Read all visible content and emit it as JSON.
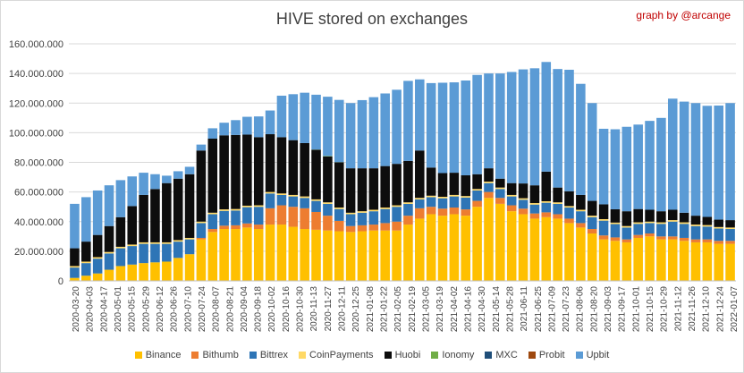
{
  "chart_data": {
    "type": "bar",
    "stacked": true,
    "title": "HIVE stored on exchanges",
    "credit": "graph by @arcange",
    "ylim": [
      0,
      160000000
    ],
    "yticks": [
      "0",
      "20.000.000",
      "40.000.000",
      "60.000.000",
      "80.000.000",
      "100.000.000",
      "120.000.000",
      "140.000.000",
      "160.000.000"
    ],
    "ytick_values": [
      0,
      20000000,
      40000000,
      60000000,
      80000000,
      100000000,
      120000000,
      140000000,
      160000000
    ],
    "xticks": [
      "2020-03-20",
      "2020-04-03",
      "2020-04-17",
      "2020-05-01",
      "2020-05-15",
      "2020-05-29",
      "2020-06-12",
      "2020-06-26",
      "2020-07-10",
      "2020-07-24",
      "2020-08-07",
      "2020-08-21",
      "2020-09-04",
      "2020-09-18",
      "2020-10-02",
      "2020-10-16",
      "2020-10-30",
      "2020-11-13",
      "2020-11-27",
      "2020-12-11",
      "2020-12-25",
      "2021-01-08",
      "2021-01-22",
      "2021-02-05",
      "2021-02-19",
      "2021-03-05",
      "2021-03-19",
      "2021-04-02",
      "2021-04-16",
      "2021-04-30",
      "2021-05-14",
      "2021-05-28",
      "2021-06-11",
      "2021-06-25",
      "2021-07-09",
      "2021-07-23",
      "2021-08-06",
      "2021-08-20",
      "2021-09-03",
      "2021-09-17",
      "2021-10-01",
      "2021-10-15",
      "2021-10-29",
      "2021-11-12",
      "2021-11-26",
      "2021-12-10",
      "2021-12-24",
      "2022-01-07"
    ],
    "grid": true,
    "legend_position": "bottom",
    "series": [
      {
        "name": "Binance",
        "color": "#ffc000",
        "keyframes": [
          [
            0,
            2000000
          ],
          [
            2,
            5000000
          ],
          [
            4,
            10000000
          ],
          [
            6,
            12000000
          ],
          [
            8,
            13000000
          ],
          [
            10,
            18000000
          ],
          [
            11,
            28000000
          ],
          [
            12,
            33000000
          ],
          [
            13,
            35000000
          ],
          [
            14,
            35000000
          ],
          [
            15,
            36000000
          ],
          [
            16,
            35000000
          ],
          [
            17,
            38000000
          ],
          [
            18,
            38000000
          ],
          [
            20,
            35000000
          ],
          [
            22,
            34000000
          ],
          [
            24,
            33000000
          ],
          [
            26,
            34000000
          ],
          [
            28,
            34000000
          ],
          [
            29,
            38000000
          ],
          [
            30,
            42000000
          ],
          [
            31,
            45000000
          ],
          [
            32,
            44000000
          ],
          [
            33,
            45000000
          ],
          [
            34,
            44000000
          ],
          [
            35,
            50000000
          ],
          [
            36,
            56000000
          ],
          [
            37,
            52000000
          ],
          [
            38,
            47000000
          ],
          [
            39,
            45000000
          ],
          [
            40,
            42000000
          ],
          [
            41,
            43000000
          ],
          [
            42,
            42000000
          ],
          [
            43,
            39000000
          ],
          [
            44,
            36000000
          ],
          [
            45,
            32000000
          ],
          [
            46,
            28000000
          ],
          [
            47,
            27000000
          ],
          [
            48,
            26000000
          ],
          [
            49,
            29000000
          ],
          [
            50,
            30000000
          ],
          [
            51,
            28000000
          ],
          [
            52,
            28000000
          ],
          [
            53,
            27000000
          ],
          [
            54,
            26000000
          ],
          [
            55,
            26000000
          ],
          [
            56,
            25000000
          ],
          [
            57,
            25000000
          ]
        ]
      },
      {
        "name": "Bithumb",
        "color": "#ed7d31",
        "keyframes": [
          [
            0,
            0
          ],
          [
            10,
            0
          ],
          [
            12,
            2000000
          ],
          [
            16,
            3000000
          ],
          [
            17,
            11000000
          ],
          [
            18,
            13000000
          ],
          [
            20,
            14000000
          ],
          [
            22,
            10000000
          ],
          [
            24,
            4000000
          ],
          [
            26,
            4000000
          ],
          [
            28,
            6000000
          ],
          [
            29,
            6000000
          ],
          [
            30,
            7000000
          ],
          [
            31,
            5000000
          ],
          [
            35,
            4000000
          ],
          [
            38,
            4000000
          ],
          [
            42,
            3000000
          ],
          [
            45,
            3000000
          ],
          [
            48,
            2000000
          ],
          [
            52,
            2000000
          ],
          [
            57,
            2000000
          ]
        ]
      },
      {
        "name": "Bittrex",
        "color": "#2e75b6",
        "keyframes": [
          [
            0,
            7000000
          ],
          [
            2,
            10000000
          ],
          [
            4,
            12000000
          ],
          [
            6,
            13000000
          ],
          [
            8,
            12000000
          ],
          [
            10,
            10000000
          ],
          [
            11,
            10000000
          ],
          [
            12,
            10000000
          ],
          [
            14,
            10000000
          ],
          [
            16,
            12000000
          ],
          [
            17,
            10000000
          ],
          [
            18,
            7000000
          ],
          [
            20,
            7000000
          ],
          [
            22,
            8000000
          ],
          [
            24,
            8000000
          ],
          [
            26,
            9000000
          ],
          [
            28,
            10000000
          ],
          [
            29,
            8000000
          ],
          [
            30,
            6000000
          ],
          [
            32,
            7000000
          ],
          [
            34,
            8000000
          ],
          [
            36,
            6000000
          ],
          [
            38,
            6000000
          ],
          [
            40,
            6000000
          ],
          [
            42,
            7000000
          ],
          [
            44,
            8000000
          ],
          [
            45,
            8000000
          ],
          [
            46,
            10000000
          ],
          [
            48,
            8000000
          ],
          [
            50,
            7000000
          ],
          [
            52,
            10000000
          ],
          [
            54,
            9000000
          ],
          [
            57,
            8000000
          ]
        ]
      },
      {
        "name": "CoinPayments",
        "color": "#ffd966",
        "keyframes": [
          [
            0,
            1000000
          ],
          [
            20,
            1000000
          ],
          [
            40,
            1000000
          ],
          [
            57,
            1000000
          ]
        ]
      },
      {
        "name": "Huobi",
        "color": "#0d0d0d",
        "keyframes": [
          [
            0,
            12000000
          ],
          [
            2,
            15000000
          ],
          [
            4,
            20000000
          ],
          [
            6,
            32000000
          ],
          [
            8,
            40000000
          ],
          [
            10,
            43000000
          ],
          [
            11,
            48000000
          ],
          [
            12,
            50000000
          ],
          [
            14,
            50000000
          ],
          [
            16,
            46000000
          ],
          [
            17,
            39000000
          ],
          [
            18,
            38000000
          ],
          [
            20,
            36000000
          ],
          [
            22,
            31000000
          ],
          [
            24,
            30000000
          ],
          [
            26,
            28000000
          ],
          [
            28,
            28000000
          ],
          [
            29,
            28000000
          ],
          [
            30,
            32000000
          ],
          [
            31,
            19000000
          ],
          [
            32,
            16000000
          ],
          [
            33,
            15000000
          ],
          [
            34,
            14000000
          ],
          [
            35,
            10000000
          ],
          [
            36,
            9000000
          ],
          [
            37,
            6000000
          ],
          [
            38,
            8000000
          ],
          [
            39,
            10000000
          ],
          [
            40,
            12000000
          ],
          [
            41,
            20000000
          ],
          [
            42,
            10000000
          ],
          [
            43,
            10000000
          ],
          [
            44,
            10000000
          ],
          [
            45,
            10000000
          ],
          [
            46,
            10000000
          ],
          [
            47,
            9000000
          ],
          [
            48,
            10000000
          ],
          [
            50,
            8000000
          ],
          [
            52,
            7000000
          ],
          [
            54,
            6000000
          ],
          [
            56,
            5000000
          ],
          [
            57,
            5000000
          ]
        ]
      },
      {
        "name": "Ionomy",
        "color": "#70ad47",
        "keyframes": [
          [
            0,
            0
          ],
          [
            20,
            0
          ],
          [
            22,
            300000
          ],
          [
            24,
            0
          ],
          [
            57,
            0
          ]
        ]
      },
      {
        "name": "MXC",
        "color": "#1f4e79",
        "keyframes": [
          [
            0,
            0
          ],
          [
            40,
            0
          ],
          [
            57,
            0
          ]
        ]
      },
      {
        "name": "Probit",
        "color": "#9e480e",
        "keyframes": [
          [
            0,
            0
          ],
          [
            40,
            0
          ],
          [
            57,
            0
          ]
        ]
      },
      {
        "name": "Upbit",
        "color": "#5b9bd5",
        "keyframes": [
          [
            0,
            30000000
          ],
          [
            2,
            30000000
          ],
          [
            4,
            25000000
          ],
          [
            6,
            15000000
          ],
          [
            8,
            5000000
          ],
          [
            10,
            5000000
          ],
          [
            11,
            4000000
          ],
          [
            12,
            7000000
          ],
          [
            14,
            10000000
          ],
          [
            16,
            14000000
          ],
          [
            17,
            16000000
          ],
          [
            18,
            28000000
          ],
          [
            20,
            34000000
          ],
          [
            22,
            40000000
          ],
          [
            24,
            44000000
          ],
          [
            26,
            48000000
          ],
          [
            28,
            50000000
          ],
          [
            29,
            54000000
          ],
          [
            30,
            48000000
          ],
          [
            31,
            57000000
          ],
          [
            32,
            61000000
          ],
          [
            33,
            61000000
          ],
          [
            34,
            64000000
          ],
          [
            35,
            67000000
          ],
          [
            36,
            64000000
          ],
          [
            37,
            71000000
          ],
          [
            38,
            75000000
          ],
          [
            39,
            77000000
          ],
          [
            40,
            79000000
          ],
          [
            41,
            74000000
          ],
          [
            42,
            80000000
          ],
          [
            43,
            82000000
          ],
          [
            44,
            75000000
          ],
          [
            45,
            66000000
          ],
          [
            46,
            51000000
          ],
          [
            47,
            54000000
          ],
          [
            48,
            57000000
          ],
          [
            49,
            57000000
          ],
          [
            50,
            60000000
          ],
          [
            51,
            63000000
          ],
          [
            52,
            75000000
          ],
          [
            53,
            75000000
          ],
          [
            54,
            76000000
          ],
          [
            55,
            75000000
          ],
          [
            56,
            77000000
          ],
          [
            57,
            79000000
          ]
        ]
      }
    ]
  }
}
